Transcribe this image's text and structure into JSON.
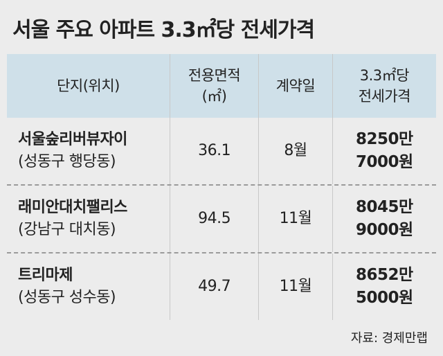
{
  "title": "서울 주요 아파트 3.3㎡당 전세가격",
  "table": {
    "header": [
      [
        "단지(위치)"
      ],
      [
        "전용면적",
        "(㎡)"
      ],
      [
        "계약일"
      ],
      [
        "3.3㎡당",
        "전세가격"
      ]
    ],
    "rows": [
      [
        [
          "서울숲리버뷰자이",
          "(성동구 행당동)"
        ],
        [
          "36.1"
        ],
        [
          "8월"
        ],
        [
          "8250만",
          "7000원"
        ]
      ],
      [
        [
          "래미안대치팰리스",
          "(강남구 대치동)"
        ],
        [
          "94.5"
        ],
        [
          "11월"
        ],
        [
          "8045만",
          "9000원"
        ]
      ],
      [
        [
          "트리마제",
          "(성동구 성수동)"
        ],
        [
          "49.7"
        ],
        [
          "11월"
        ],
        [
          "8652만",
          "5000원"
        ]
      ]
    ]
  },
  "source": "자료: 경제만랩"
}
